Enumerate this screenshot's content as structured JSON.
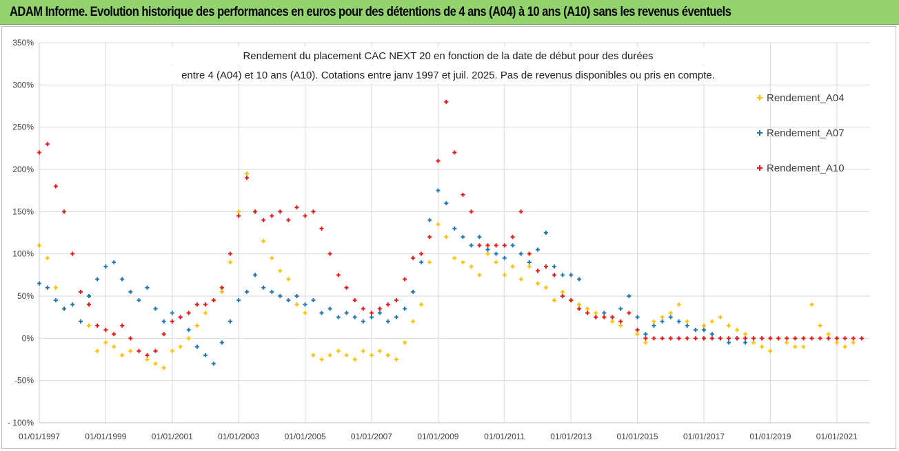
{
  "banner": {
    "title": "ADAM Informe. Evolution historique des performances en euros pour des détentions de 4 ans (A04) à 10 ans (A10) sans les revenus éventuels",
    "background": "#92d36e"
  },
  "chart_data": {
    "type": "scatter",
    "title_lines": [
      "Rendement du placement CAC NEXT 20 en fonction de la date de début pour des durées",
      "entre 4 (A04)  et 10 ans (A10). Cotations entre janv 1997 et juil. 2025. Pas de revenus disponibles ou pris en compte."
    ],
    "xlabel": "",
    "ylabel": "",
    "x_range": [
      "1997-01-01",
      "2022-01-01"
    ],
    "x_ticks": [
      "01/01/1997",
      "01/01/1999",
      "01/01/2001",
      "01/01/2003",
      "01/01/2005",
      "01/01/2007",
      "01/01/2009",
      "01/01/2011",
      "01/01/2013",
      "01/01/2015",
      "01/01/2017",
      "01/01/2019",
      "01/01/2021"
    ],
    "y_range": [
      -100,
      350
    ],
    "y_ticks": [
      -100,
      -50,
      0,
      50,
      100,
      150,
      200,
      250,
      300,
      350
    ],
    "y_tick_labels": [
      "- 100%",
      "-50%",
      "0%",
      "50%",
      "100%",
      "150%",
      "200%",
      "250%",
      "300%",
      "350%"
    ],
    "grid": true,
    "legend_position": "right",
    "marker": "+",
    "series": [
      {
        "name": "Rendement_A04",
        "color": "#ffc000",
        "x": [
          "1997-01-01",
          "1997-04-01",
          "1997-07-01",
          "1997-10-01",
          "1998-01-01",
          "1998-04-01",
          "1998-07-01",
          "1998-10-01",
          "1999-01-01",
          "1999-04-01",
          "1999-07-01",
          "1999-10-01",
          "2000-01-01",
          "2000-04-01",
          "2000-07-01",
          "2000-10-01",
          "2001-01-01",
          "2001-04-01",
          "2001-07-01",
          "2001-10-01",
          "2002-01-01",
          "2002-04-01",
          "2002-07-01",
          "2002-10-01",
          "2003-01-01",
          "2003-04-01",
          "2003-07-01",
          "2003-10-01",
          "2004-01-01",
          "2004-04-01",
          "2004-07-01",
          "2004-10-01",
          "2005-01-01",
          "2005-04-01",
          "2005-07-01",
          "2005-10-01",
          "2006-01-01",
          "2006-04-01",
          "2006-07-01",
          "2006-10-01",
          "2007-01-01",
          "2007-04-01",
          "2007-07-01",
          "2007-10-01",
          "2008-01-01",
          "2008-04-01",
          "2008-07-01",
          "2008-10-01",
          "2009-01-01",
          "2009-04-01",
          "2009-07-01",
          "2009-10-01",
          "2010-01-01",
          "2010-04-01",
          "2010-07-01",
          "2010-10-01",
          "2011-01-01",
          "2011-04-01",
          "2011-07-01",
          "2011-10-01",
          "2012-01-01",
          "2012-04-01",
          "2012-07-01",
          "2012-10-01",
          "2013-01-01",
          "2013-04-01",
          "2013-07-01",
          "2013-10-01",
          "2014-01-01",
          "2014-04-01",
          "2014-07-01",
          "2014-10-01",
          "2015-01-01",
          "2015-04-01",
          "2015-07-01",
          "2015-10-01",
          "2016-01-01",
          "2016-04-01",
          "2016-07-01",
          "2016-10-01",
          "2017-01-01",
          "2017-04-01",
          "2017-07-01",
          "2017-10-01",
          "2018-01-01",
          "2018-04-01",
          "2018-07-01",
          "2018-10-01",
          "2019-01-01",
          "2019-04-01",
          "2019-07-01",
          "2019-10-01",
          "2020-01-01",
          "2020-04-01",
          "2020-07-01",
          "2020-10-01",
          "2021-01-01",
          "2021-04-01",
          "2021-07-01"
        ],
        "y": [
          110,
          95,
          60,
          35,
          40,
          20,
          15,
          -15,
          -5,
          -10,
          -20,
          -15,
          -15,
          -25,
          -30,
          -35,
          -15,
          -10,
          0,
          15,
          30,
          45,
          55,
          90,
          150,
          195,
          150,
          115,
          95,
          80,
          70,
          40,
          30,
          -20,
          -25,
          -20,
          -15,
          -20,
          -25,
          -15,
          -20,
          -15,
          -20,
          -25,
          -5,
          20,
          40,
          90,
          135,
          120,
          95,
          90,
          85,
          75,
          100,
          90,
          75,
          85,
          70,
          85,
          65,
          60,
          45,
          55,
          45,
          40,
          35,
          30,
          25,
          20,
          15,
          30,
          5,
          -5,
          20,
          25,
          30,
          40,
          20,
          10,
          15,
          20,
          25,
          15,
          10,
          5,
          -5,
          -10,
          -15,
          0,
          -5,
          -10,
          -10,
          40,
          15,
          5,
          -5,
          -10,
          -5
        ]
      },
      {
        "name": "Rendement_A07",
        "color": "#1f77b4",
        "x": [
          "1997-01-01",
          "1997-04-01",
          "1997-07-01",
          "1997-10-01",
          "1998-01-01",
          "1998-04-01",
          "1998-07-01",
          "1998-10-01",
          "1999-01-01",
          "1999-04-01",
          "1999-07-01",
          "1999-10-01",
          "2000-01-01",
          "2000-04-01",
          "2000-07-01",
          "2000-10-01",
          "2001-01-01",
          "2001-04-01",
          "2001-07-01",
          "2001-10-01",
          "2002-01-01",
          "2002-04-01",
          "2002-07-01",
          "2002-10-01",
          "2003-01-01",
          "2003-04-01",
          "2003-07-01",
          "2003-10-01",
          "2004-01-01",
          "2004-04-01",
          "2004-07-01",
          "2004-10-01",
          "2005-01-01",
          "2005-04-01",
          "2005-07-01",
          "2005-10-01",
          "2006-01-01",
          "2006-04-01",
          "2006-07-01",
          "2006-10-01",
          "2007-01-01",
          "2007-04-01",
          "2007-07-01",
          "2007-10-01",
          "2008-01-01",
          "2008-04-01",
          "2008-07-01",
          "2008-10-01",
          "2009-01-01",
          "2009-04-01",
          "2009-07-01",
          "2009-10-01",
          "2010-01-01",
          "2010-04-01",
          "2010-07-01",
          "2010-10-01",
          "2011-01-01",
          "2011-04-01",
          "2011-07-01",
          "2011-10-01",
          "2012-01-01",
          "2012-04-01",
          "2012-07-01",
          "2012-10-01",
          "2013-01-01",
          "2013-04-01",
          "2013-07-01",
          "2013-10-01",
          "2014-01-01",
          "2014-04-01",
          "2014-07-01",
          "2014-10-01",
          "2015-01-01",
          "2015-04-01",
          "2015-07-01",
          "2015-10-01",
          "2016-01-01",
          "2016-04-01",
          "2016-07-01",
          "2016-10-01",
          "2017-01-01",
          "2017-04-01",
          "2017-07-01",
          "2017-10-01",
          "2018-01-01",
          "2018-04-01",
          "2018-07-01",
          "2018-10-01"
        ],
        "y": [
          65,
          60,
          45,
          35,
          40,
          20,
          50,
          70,
          85,
          90,
          70,
          55,
          45,
          60,
          35,
          20,
          30,
          25,
          10,
          -10,
          -20,
          -30,
          -5,
          20,
          45,
          55,
          75,
          60,
          55,
          50,
          45,
          50,
          40,
          45,
          30,
          35,
          25,
          30,
          25,
          20,
          25,
          30,
          20,
          25,
          35,
          55,
          90,
          140,
          175,
          160,
          130,
          120,
          110,
          120,
          105,
          100,
          95,
          110,
          100,
          90,
          105,
          125,
          85,
          75,
          75,
          70,
          30,
          25,
          30,
          25,
          35,
          50,
          25,
          5,
          15,
          20,
          25,
          20,
          15,
          10,
          10,
          5,
          0,
          -5,
          0,
          -5,
          0,
          0
        ]
      },
      {
        "name": "Rendement_A10",
        "color": "#e8191b",
        "x": [
          "1997-01-01",
          "1997-04-01",
          "1997-07-01",
          "1997-10-01",
          "1998-01-01",
          "1998-04-01",
          "1998-07-01",
          "1998-10-01",
          "1999-01-01",
          "1999-04-01",
          "1999-07-01",
          "1999-10-01",
          "2000-01-01",
          "2000-04-01",
          "2000-07-01",
          "2000-10-01",
          "2001-01-01",
          "2001-04-01",
          "2001-07-01",
          "2001-10-01",
          "2002-01-01",
          "2002-04-01",
          "2002-07-01",
          "2002-10-01",
          "2003-01-01",
          "2003-04-01",
          "2003-07-01",
          "2003-10-01",
          "2004-01-01",
          "2004-04-01",
          "2004-07-01",
          "2004-10-01",
          "2005-01-01",
          "2005-04-01",
          "2005-07-01",
          "2005-10-01",
          "2006-01-01",
          "2006-04-01",
          "2006-07-01",
          "2006-10-01",
          "2007-01-01",
          "2007-04-01",
          "2007-07-01",
          "2007-10-01",
          "2008-01-01",
          "2008-04-01",
          "2008-07-01",
          "2008-10-01",
          "2009-01-01",
          "2009-04-01",
          "2009-07-01",
          "2009-10-01",
          "2010-01-01",
          "2010-04-01",
          "2010-07-01",
          "2010-10-01",
          "2011-01-01",
          "2011-04-01",
          "2011-07-01",
          "2011-10-01",
          "2012-01-01",
          "2012-04-01",
          "2012-07-01",
          "2012-10-01",
          "2013-01-01",
          "2013-04-01",
          "2013-07-01",
          "2013-10-01",
          "2014-01-01",
          "2014-04-01",
          "2014-07-01",
          "2014-10-01",
          "2015-01-01",
          "2015-04-01",
          "2015-07-01",
          "2015-10-01",
          "2016-01-01",
          "2016-04-01",
          "2016-07-01",
          "2016-10-01",
          "2017-01-01",
          "2017-04-01",
          "2017-07-01",
          "2017-10-01",
          "2018-01-01",
          "2018-04-01",
          "2018-07-01",
          "2018-10-01",
          "2019-01-01",
          "2019-04-01",
          "2019-07-01",
          "2019-10-01",
          "2020-01-01",
          "2020-04-01",
          "2020-07-01",
          "2020-10-01",
          "2021-01-01",
          "2021-04-01",
          "2021-07-01",
          "2021-10-01"
        ],
        "y": [
          220,
          230,
          180,
          150,
          100,
          55,
          40,
          15,
          10,
          5,
          15,
          0,
          -15,
          -20,
          -15,
          5,
          20,
          25,
          30,
          40,
          40,
          45,
          60,
          100,
          145,
          190,
          150,
          140,
          145,
          150,
          140,
          155,
          145,
          150,
          130,
          100,
          75,
          60,
          45,
          35,
          30,
          35,
          40,
          45,
          70,
          95,
          100,
          120,
          210,
          280,
          220,
          170,
          150,
          110,
          110,
          110,
          110,
          120,
          150,
          100,
          80,
          85,
          75,
          50,
          45,
          35,
          30,
          25,
          25,
          25,
          20,
          30,
          10,
          0,
          0,
          0,
          0,
          0,
          0,
          0,
          0,
          0,
          0,
          0,
          0,
          0,
          0,
          0,
          0,
          0,
          0,
          0,
          0,
          0,
          0,
          0,
          0,
          0,
          0,
          0
        ]
      }
    ]
  }
}
